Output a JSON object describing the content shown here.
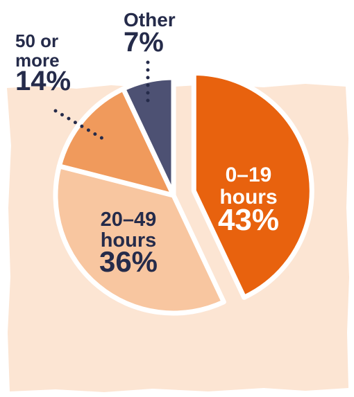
{
  "chart_data": {
    "type": "pie",
    "slices": [
      {
        "label_lines": [
          "0–19",
          "hours"
        ],
        "percent_text": "43%",
        "value": 43,
        "color": "#E8620E"
      },
      {
        "label_lines": [
          "20–49",
          "hours"
        ],
        "percent_text": "36%",
        "value": 36,
        "color": "#F8C6A0"
      },
      {
        "label_lines": [
          "50 or",
          "more"
        ],
        "percent_text": "14%",
        "value": 14,
        "color": "#F09A5C"
      },
      {
        "label_lines": [
          "Other"
        ],
        "percent_text": "7%",
        "value": 7,
        "color": "#4D5173"
      }
    ],
    "colors": {
      "background_panel": "#FCE5D3",
      "label_dark": "#252B4A",
      "label_light": "#FFFFFF",
      "outline": "#FFFFFF"
    }
  }
}
